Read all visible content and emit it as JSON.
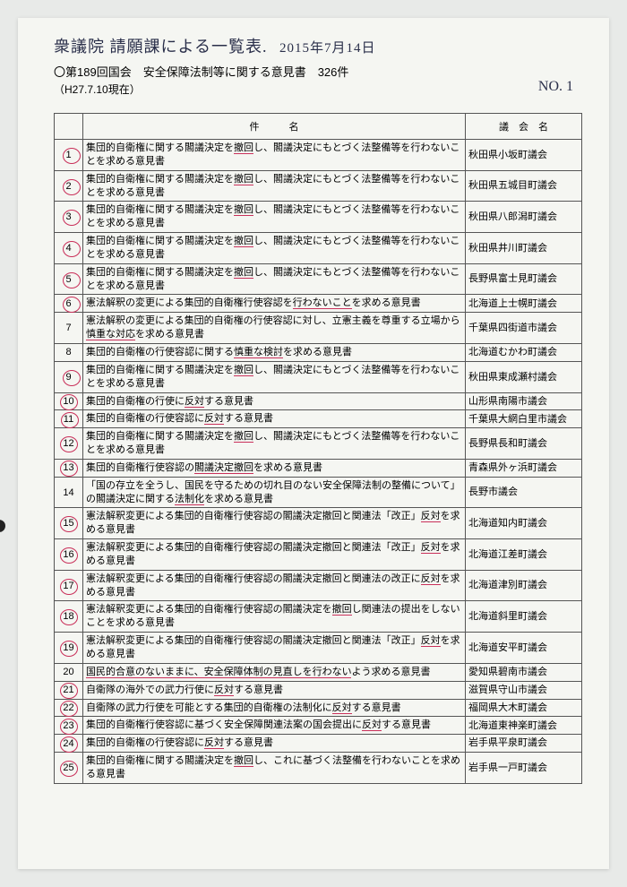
{
  "handwriting": {
    "title": "衆議院 請願課による一覧表.",
    "date": "2015年7月14日",
    "pageno": "NO. 1"
  },
  "header": {
    "line1": "〇第189回国会　安全保障法制等に関する意見書　326件",
    "line2": "（H27.7.10現在）"
  },
  "columns": {
    "subject": "件　　　名",
    "assembly": "議　会　名"
  },
  "rows": [
    {
      "n": "1",
      "c": true,
      "s": "集団的自衛権に関する閣議決定を<p>撤回</p>し、閣議決定にもとづく法整備等を行わないことを求める意見書",
      "a": "秋田県小坂町議会"
    },
    {
      "n": "2",
      "c": true,
      "s": "集団的自衛権に関する閣議決定を<p>撤回</p>し、閣議決定にもとづく法整備等を行わないことを求める意見書",
      "a": "秋田県五城目町議会"
    },
    {
      "n": "3",
      "c": true,
      "s": "集団的自衛権に関する閣議決定を<p>撤回</p>し、閣議決定にもとづく法整備等を行わないことを求める意見書",
      "a": "秋田県八郎潟町議会"
    },
    {
      "n": "4",
      "c": true,
      "s": "集団的自衛権に関する閣議決定を<p>撤回</p>し、閣議決定にもとづく法整備等を行わないことを求める意見書",
      "a": "秋田県井川町議会"
    },
    {
      "n": "5",
      "c": true,
      "s": "集団的自衛権に関する閣議決定を<p>撤回</p>し、閣議決定にもとづく法整備等を行わないことを求める意見書",
      "a": "長野県富士見町議会"
    },
    {
      "n": "6",
      "c": true,
      "s": "憲法解釈の変更による集団的自衛権行使容認を<p>行わないこと</p>を求める意見書",
      "a": "北海道上士幌町議会"
    },
    {
      "n": "7",
      "c": false,
      "s": "憲法解釈の変更による集団的自衛権の行使容認に対し、立憲主義を尊重する立場から<p>慎重な対応</p>を求める意見書",
      "a": "千葉県四街道市議会"
    },
    {
      "n": "8",
      "c": false,
      "s": "集団的自衛権の行使容認に関する<p>慎重な検討</p>を求める意見書",
      "a": "北海道むかわ町議会"
    },
    {
      "n": "9",
      "c": true,
      "s": "集団的自衛権に関する閣議決定を<p>撤回</p>し、閣議決定にもとづく法整備等を行わないことを求める意見書",
      "a": "秋田県東成瀬村議会"
    },
    {
      "n": "10",
      "c": true,
      "s": "集団的自衛権の行使に<p>反対</p>する意見書",
      "a": "山形県南陽市議会"
    },
    {
      "n": "11",
      "c": true,
      "s": "集団的自衛権の行使容認に<p>反対</p>する意見書",
      "a": "千葉県大網白里市議会"
    },
    {
      "n": "12",
      "c": true,
      "s": "集団的自衛権に関する閣議決定を<p>撤回</p>し、閣議決定にもとづく法整備等を行わないことを求める意見書",
      "a": "長野県長和町議会"
    },
    {
      "n": "13",
      "c": true,
      "s": "集団的自衛権行使容認の<p>閣議決定撤回</p>を求める意見書",
      "a": "青森県外ヶ浜町議会"
    },
    {
      "n": "14",
      "c": false,
      "s": "「国の存立を全うし、国民を守るための切れ目のない安全保障法制の整備について」の閣議決定に関する<p>法制化</p>を求める意見書",
      "a": "長野市議会"
    },
    {
      "n": "15",
      "c": true,
      "s": "憲法解釈変更による集団的自衛権行使容認の閣議決定撤回と関連法「改正」<p>反対</p>を求める意見書",
      "a": "北海道知内町議会"
    },
    {
      "n": "16",
      "c": true,
      "s": "憲法解釈変更による集団的自衛権行使容認の閣議決定撤回と関連法「改正」<p>反対</p>を求める意見書",
      "a": "北海道江差町議会"
    },
    {
      "n": "17",
      "c": true,
      "s": "憲法解釈変更による集団的自衛権行使容認の閣議決定撤回と関連法の改正に<p>反対</p>を求める意見書",
      "a": "北海道津別町議会"
    },
    {
      "n": "18",
      "c": true,
      "s": "憲法解釈変更による集団的自衛権行使容認の閣議決定を<p>撤回</p>し関連法の提出をしないことを求める意見書",
      "a": "北海道斜里町議会"
    },
    {
      "n": "19",
      "c": true,
      "s": "憲法解釈変更による集団的自衛権行使容認の閣議決定撤回と関連法「改正」<p>反対</p>を求める意見書",
      "a": "北海道安平町議会"
    },
    {
      "n": "20",
      "c": false,
      "s": "<p>国民的合意のないままに、安全保障体制の見直しを行わない</p>よう求める意見書",
      "a": "愛知県碧南市議会"
    },
    {
      "n": "21",
      "c": true,
      "s": "自衛隊の海外での武力行使に<p>反対</p>する意見書",
      "a": "滋賀県守山市議会"
    },
    {
      "n": "22",
      "c": true,
      "s": "自衛隊の武力行使を可能とする集団的自衛権の法制化に<p>反対</p>する意見書",
      "a": "福岡県大木町議会"
    },
    {
      "n": "23",
      "c": true,
      "s": "集団的自衛権行使容認に基づく安全保障関連法案の国会提出に<p>反対</p>する意見書",
      "a": "北海道東神楽町議会"
    },
    {
      "n": "24",
      "c": true,
      "s": "集団的自衛権の行使容認に<p>反対</p>する意見書",
      "a": "岩手県平泉町議会"
    },
    {
      "n": "25",
      "c": true,
      "s": "集団的自衛権に関する閣議決定を<p>撤回</p>し、これに基づく法整備を行わないことを求める意見書",
      "a": "岩手県一戸町議会"
    }
  ]
}
